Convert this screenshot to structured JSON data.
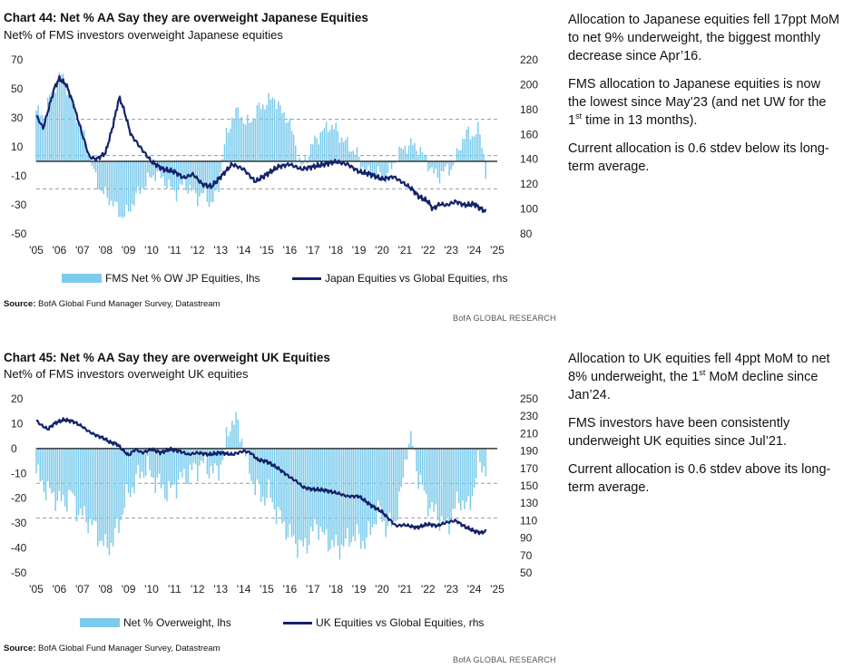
{
  "panels": [
    {
      "title": "Chart 44: Net % AA Say they are overweight Japanese Equities",
      "subtitle": "Net% of FMS investors overweight Japanese equities",
      "legend_bar": "FMS Net % OW JP Equities, lhs",
      "legend_line": "Japan Equities vs Global Equities, rhs",
      "source_label": "Source:",
      "source_text": " BofA Global Fund Manager Survey, Datastream",
      "brand": "BofA GLOBAL RESEARCH",
      "notes": [
        {
          "text": "Allocation to Japanese equities fell 17ppt MoM to net 9% underweight, the biggest monthly decrease since Apr’16."
        },
        {
          "text": "FMS allocation to Japanese equities is now the lowest since May’23 (and net UW for the ",
          "sup": "st",
          "after": " time in 13 months).",
          "sup_prefix": "1"
        },
        {
          "text": "Current allocation is 0.6 stdev below its long-term average."
        }
      ]
    },
    {
      "title": "Chart 45: Net % AA Say they are overweight UK Equities",
      "subtitle": "Net% of FMS investors overweight UK equities",
      "legend_bar": "Net % Overweight, lhs",
      "legend_line": "UK Equities vs Global Equities, rhs",
      "source_label": "Source:",
      "source_text": " BofA Global Fund Manager Survey, Datastream",
      "brand": "BofA GLOBAL RESEARCH",
      "notes": [
        {
          "text": "Allocation to UK equities fell 4ppt MoM to net 8% underweight, the ",
          "sup": "st",
          "after": " MoM decline since Jan’24.",
          "sup_prefix": "1"
        },
        {
          "text": "FMS investors have been consistently underweight UK equities since Jul’21."
        },
        {
          "text": "Current allocation is 0.6 stdev above its long-term average."
        }
      ]
    }
  ],
  "chart_data": [
    {
      "type": "bar+line",
      "x_ticks": [
        "'05",
        "'06",
        "'07",
        "'08",
        "'09",
        "'10",
        "'11",
        "'12",
        "'13",
        "'14",
        "'15",
        "'16",
        "'17",
        "'18",
        "'19",
        "'20",
        "'21",
        "'22",
        "'23",
        "'24",
        "'25"
      ],
      "x_range": [
        2005.0,
        2025.0
      ],
      "lhs_ticks": [
        70,
        50,
        30,
        10,
        -10,
        -30,
        -50
      ],
      "lhs_range": [
        -50,
        70
      ],
      "rhs_ticks": [
        220,
        200,
        180,
        160,
        140,
        120,
        100,
        80
      ],
      "rhs_range": [
        80,
        220
      ],
      "zero_line": 0,
      "reference_lines": [
        29,
        -19,
        4
      ],
      "bar_color": "#7ccbec",
      "line_color": "#14236b",
      "bars_lhs": {
        "name": "FMS Net % OW JP Equities, lhs",
        "points": [
          [
            2005.0,
            35
          ],
          [
            2005.3,
            30
          ],
          [
            2005.6,
            45
          ],
          [
            2005.9,
            55
          ],
          [
            2006.1,
            60
          ],
          [
            2006.3,
            52
          ],
          [
            2006.6,
            40
          ],
          [
            2006.9,
            25
          ],
          [
            2007.2,
            12
          ],
          [
            2007.5,
            -8
          ],
          [
            2007.8,
            -20
          ],
          [
            2008.1,
            -25
          ],
          [
            2008.4,
            -30
          ],
          [
            2008.7,
            -38
          ],
          [
            2009.0,
            -35
          ],
          [
            2009.3,
            -25
          ],
          [
            2009.6,
            -18
          ],
          [
            2009.9,
            -12
          ],
          [
            2010.2,
            -8
          ],
          [
            2010.5,
            -12
          ],
          [
            2010.8,
            -18
          ],
          [
            2011.1,
            -22
          ],
          [
            2011.4,
            -15
          ],
          [
            2011.7,
            -20
          ],
          [
            2012.0,
            -25
          ],
          [
            2012.3,
            -22
          ],
          [
            2012.6,
            -30
          ],
          [
            2012.9,
            -18
          ],
          [
            2013.2,
            15
          ],
          [
            2013.5,
            30
          ],
          [
            2013.8,
            35
          ],
          [
            2014.1,
            25
          ],
          [
            2014.4,
            30
          ],
          [
            2014.7,
            38
          ],
          [
            2015.0,
            40
          ],
          [
            2015.3,
            45
          ],
          [
            2015.6,
            35
          ],
          [
            2015.9,
            30
          ],
          [
            2016.2,
            15
          ],
          [
            2016.5,
            -5
          ],
          [
            2016.8,
            5
          ],
          [
            2017.1,
            15
          ],
          [
            2017.4,
            20
          ],
          [
            2017.7,
            25
          ],
          [
            2018.0,
            22
          ],
          [
            2018.3,
            15
          ],
          [
            2018.6,
            10
          ],
          [
            2018.9,
            5
          ],
          [
            2019.2,
            -5
          ],
          [
            2019.5,
            -10
          ],
          [
            2019.8,
            -8
          ],
          [
            2020.1,
            -12
          ],
          [
            2020.4,
            -5
          ],
          [
            2020.7,
            5
          ],
          [
            2021.0,
            10
          ],
          [
            2021.3,
            12
          ],
          [
            2021.6,
            8
          ],
          [
            2021.9,
            2
          ],
          [
            2022.2,
            -8
          ],
          [
            2022.5,
            -10
          ],
          [
            2022.8,
            -5
          ],
          [
            2023.1,
            -4
          ],
          [
            2023.4,
            12
          ],
          [
            2023.7,
            20
          ],
          [
            2024.0,
            18
          ],
          [
            2024.2,
            22
          ],
          [
            2024.4,
            8
          ],
          [
            2024.5,
            -9
          ]
        ]
      },
      "line_rhs": {
        "name": "Japan Equities vs Global Equities, rhs",
        "points": [
          [
            2005.0,
            175
          ],
          [
            2005.3,
            165
          ],
          [
            2005.6,
            185
          ],
          [
            2005.8,
            198
          ],
          [
            2006.0,
            205
          ],
          [
            2006.3,
            200
          ],
          [
            2006.6,
            185
          ],
          [
            2007.0,
            160
          ],
          [
            2007.3,
            142
          ],
          [
            2007.6,
            140
          ],
          [
            2008.0,
            145
          ],
          [
            2008.3,
            165
          ],
          [
            2008.6,
            190
          ],
          [
            2008.8,
            180
          ],
          [
            2009.1,
            160
          ],
          [
            2009.5,
            150
          ],
          [
            2010.0,
            138
          ],
          [
            2010.5,
            132
          ],
          [
            2011.0,
            130
          ],
          [
            2011.4,
            125
          ],
          [
            2011.8,
            128
          ],
          [
            2012.2,
            120
          ],
          [
            2012.6,
            118
          ],
          [
            2013.0,
            126
          ],
          [
            2013.5,
            136
          ],
          [
            2014.0,
            132
          ],
          [
            2014.5,
            122
          ],
          [
            2015.0,
            128
          ],
          [
            2015.5,
            134
          ],
          [
            2016.0,
            136
          ],
          [
            2016.5,
            132
          ],
          [
            2017.0,
            134
          ],
          [
            2017.5,
            136
          ],
          [
            2018.0,
            138
          ],
          [
            2018.5,
            136
          ],
          [
            2019.0,
            130
          ],
          [
            2019.5,
            128
          ],
          [
            2020.0,
            124
          ],
          [
            2020.5,
            126
          ],
          [
            2021.0,
            120
          ],
          [
            2021.3,
            116
          ],
          [
            2021.6,
            110
          ],
          [
            2022.0,
            106
          ],
          [
            2022.2,
            100
          ],
          [
            2022.5,
            104
          ],
          [
            2022.8,
            103
          ],
          [
            2023.2,
            106
          ],
          [
            2023.6,
            103
          ],
          [
            2024.0,
            104
          ],
          [
            2024.3,
            100
          ],
          [
            2024.5,
            98
          ]
        ]
      }
    },
    {
      "type": "bar+line",
      "x_ticks": [
        "'05",
        "'06",
        "'07",
        "'08",
        "'09",
        "'10",
        "'11",
        "'12",
        "'13",
        "'14",
        "'15",
        "'16",
        "'17",
        "'18",
        "'19",
        "'20",
        "'21",
        "'22",
        "'23",
        "'24",
        "'25"
      ],
      "x_range": [
        2005.0,
        2025.0
      ],
      "lhs_ticks": [
        20,
        10,
        0,
        -10,
        -20,
        -30,
        -40,
        -50
      ],
      "lhs_range": [
        -50,
        20
      ],
      "rhs_ticks": [
        250,
        230,
        210,
        190,
        170,
        150,
        130,
        110,
        90,
        70,
        50
      ],
      "rhs_range": [
        50,
        250
      ],
      "zero_line": 0,
      "reference_lines": [
        -28,
        -14
      ],
      "bar_color": "#7ccbec",
      "line_color": "#14236b",
      "bars_lhs": {
        "name": "Net % Overweight, lhs",
        "points": [
          [
            2005.0,
            -10
          ],
          [
            2005.3,
            -15
          ],
          [
            2005.6,
            -18
          ],
          [
            2005.9,
            -20
          ],
          [
            2006.2,
            -22
          ],
          [
            2006.5,
            -18
          ],
          [
            2006.8,
            -25
          ],
          [
            2007.1,
            -28
          ],
          [
            2007.4,
            -30
          ],
          [
            2007.7,
            -35
          ],
          [
            2008.0,
            -40
          ],
          [
            2008.3,
            -38
          ],
          [
            2008.6,
            -30
          ],
          [
            2008.9,
            -20
          ],
          [
            2009.2,
            -15
          ],
          [
            2009.5,
            -10
          ],
          [
            2009.8,
            -8
          ],
          [
            2010.1,
            -12
          ],
          [
            2010.4,
            -15
          ],
          [
            2010.7,
            -18
          ],
          [
            2011.0,
            -15
          ],
          [
            2011.3,
            -12
          ],
          [
            2011.6,
            -10
          ],
          [
            2011.9,
            -8
          ],
          [
            2012.2,
            -6
          ],
          [
            2012.5,
            -8
          ],
          [
            2012.8,
            -10
          ],
          [
            2013.1,
            -4
          ],
          [
            2013.4,
            10
          ],
          [
            2013.6,
            12
          ],
          [
            2013.9,
            5
          ],
          [
            2014.2,
            -8
          ],
          [
            2014.5,
            -15
          ],
          [
            2014.8,
            -20
          ],
          [
            2015.1,
            -18
          ],
          [
            2015.4,
            -25
          ],
          [
            2015.7,
            -30
          ],
          [
            2016.0,
            -35
          ],
          [
            2016.3,
            -38
          ],
          [
            2016.6,
            -40
          ],
          [
            2016.9,
            -35
          ],
          [
            2017.2,
            -30
          ],
          [
            2017.5,
            -36
          ],
          [
            2017.8,
            -38
          ],
          [
            2018.1,
            -40
          ],
          [
            2018.4,
            -38
          ],
          [
            2018.7,
            -35
          ],
          [
            2019.0,
            -36
          ],
          [
            2019.3,
            -38
          ],
          [
            2019.6,
            -30
          ],
          [
            2019.9,
            -25
          ],
          [
            2020.2,
            -32
          ],
          [
            2020.5,
            -30
          ],
          [
            2020.8,
            -20
          ],
          [
            2021.1,
            2
          ],
          [
            2021.3,
            3
          ],
          [
            2021.6,
            -12
          ],
          [
            2021.9,
            -20
          ],
          [
            2022.2,
            -25
          ],
          [
            2022.5,
            -28
          ],
          [
            2022.8,
            -32
          ],
          [
            2023.1,
            -25
          ],
          [
            2023.4,
            -20
          ],
          [
            2023.7,
            -25
          ],
          [
            2024.0,
            -15
          ],
          [
            2024.2,
            -5
          ],
          [
            2024.5,
            -8
          ]
        ]
      },
      "line_rhs": {
        "name": "UK Equities vs Global Equities, rhs",
        "points": [
          [
            2005.0,
            225
          ],
          [
            2005.2,
            220
          ],
          [
            2005.5,
            215
          ],
          [
            2005.8,
            222
          ],
          [
            2006.2,
            226
          ],
          [
            2006.6,
            224
          ],
          [
            2007.0,
            218
          ],
          [
            2007.3,
            212
          ],
          [
            2007.6,
            208
          ],
          [
            2007.9,
            205
          ],
          [
            2008.2,
            200
          ],
          [
            2008.5,
            198
          ],
          [
            2008.8,
            190
          ],
          [
            2009.0,
            185
          ],
          [
            2009.3,
            192
          ],
          [
            2009.6,
            188
          ],
          [
            2010.0,
            192
          ],
          [
            2010.4,
            188
          ],
          [
            2010.8,
            192
          ],
          [
            2011.2,
            190
          ],
          [
            2011.6,
            186
          ],
          [
            2012.0,
            188
          ],
          [
            2012.5,
            186
          ],
          [
            2013.0,
            188
          ],
          [
            2013.5,
            186
          ],
          [
            2014.0,
            190
          ],
          [
            2014.3,
            188
          ],
          [
            2014.6,
            180
          ],
          [
            2015.0,
            178
          ],
          [
            2015.5,
            170
          ],
          [
            2016.0,
            160
          ],
          [
            2016.3,
            155
          ],
          [
            2016.6,
            148
          ],
          [
            2017.0,
            146
          ],
          [
            2017.5,
            145
          ],
          [
            2018.0,
            142
          ],
          [
            2018.5,
            138
          ],
          [
            2019.0,
            138
          ],
          [
            2019.5,
            128
          ],
          [
            2020.0,
            120
          ],
          [
            2020.3,
            112
          ],
          [
            2020.6,
            104
          ],
          [
            2021.0,
            105
          ],
          [
            2021.5,
            102
          ],
          [
            2022.0,
            106
          ],
          [
            2022.4,
            104
          ],
          [
            2022.8,
            108
          ],
          [
            2023.2,
            110
          ],
          [
            2023.6,
            103
          ],
          [
            2024.0,
            98
          ],
          [
            2024.3,
            96
          ],
          [
            2024.5,
            98
          ]
        ]
      }
    }
  ]
}
